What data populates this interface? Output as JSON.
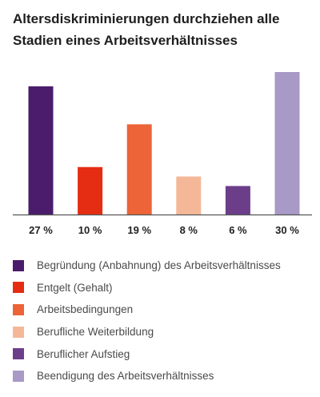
{
  "title_lines": [
    "Altersdiskriminierungen durchziehen alle",
    "Stadien eines Arbeitsverhältnisses"
  ],
  "chart_data": {
    "type": "bar",
    "title": "Altersdiskriminierungen durchziehen alle Stadien eines Arbeitsverhältnisses",
    "xlabel": "",
    "ylabel": "",
    "ylim": [
      0,
      30
    ],
    "grid": false,
    "legend_position": "bottom",
    "categories": [
      "Begründung (Anbahnung) des Arbeitsverhältnisses",
      "Entgelt (Gehalt)",
      "Arbeitsbedingungen",
      "Berufliche Weiterbildung",
      "Beruflicher Aufstieg",
      "Beendigung des Arbeitsverhältnisses"
    ],
    "values": [
      27,
      10,
      19,
      8,
      6,
      30
    ],
    "value_labels": [
      "27 %",
      "10 %",
      "19 %",
      "8 %",
      "6 %",
      "30 %"
    ],
    "colors": [
      "#4b1c6b",
      "#e42d12",
      "#ec6437",
      "#f4b898",
      "#6c3e8a",
      "#a999c6"
    ]
  }
}
